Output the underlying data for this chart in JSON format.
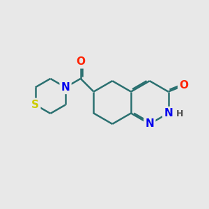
{
  "bg_color": "#e8e8e8",
  "atom_colors": {
    "N": "#0000ee",
    "O": "#ff2200",
    "S": "#cccc00",
    "H": "#505050"
  },
  "bond_color": "#2a7070",
  "bond_width": 1.8,
  "font_size_atom": 11,
  "font_size_H": 9,
  "figsize": [
    3.0,
    3.0
  ],
  "dpi": 100
}
